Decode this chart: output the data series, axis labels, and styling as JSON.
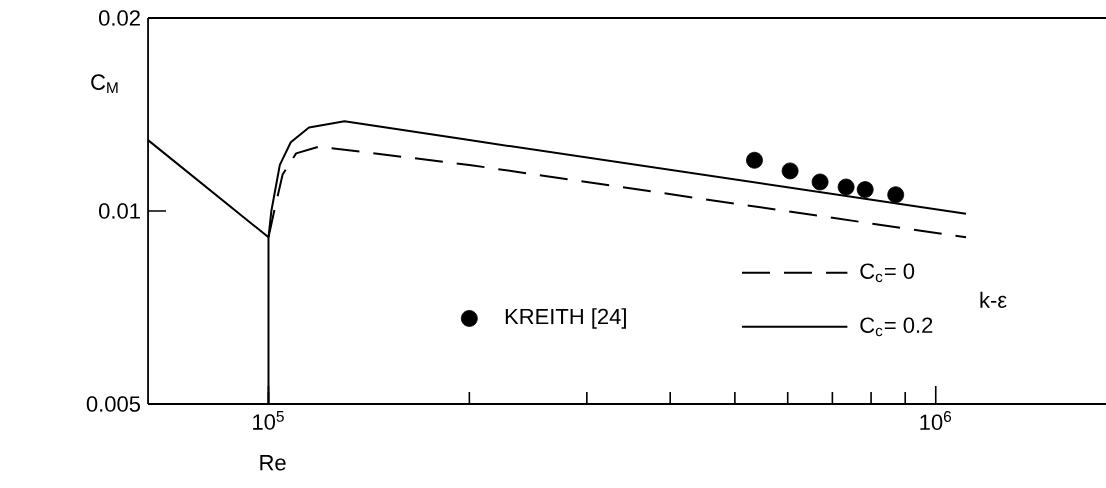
{
  "chart_data": {
    "type": "line",
    "xlabel": "Re",
    "ylabel": "C$_{M}$",
    "legend_title": "k-ε",
    "legend": "bottom right",
    "log": "xy",
    "grid": false,
    "xlim": [
      66000,
      1800000
    ],
    "ylim": [
      0.005,
      0.02
    ],
    "xticks": [
      {
        "value": 100000,
        "label": "10$^{5}$"
      },
      {
        "value": 1000000,
        "label": "10$^{6}$"
      }
    ],
    "yticks": [
      0.005,
      0.01,
      0.02
    ],
    "series": [
      {
        "name": "C$_{c}$= 0",
        "color": "#000000",
        "line_style": "dashed",
        "marker": "none",
        "x": [
          100000,
          102000,
          105000,
          110000,
          119000,
          200000,
          1110000
        ],
        "values": [
          0.0091,
          0.01,
          0.0114,
          0.0123,
          0.0126,
          0.0118,
          0.0091
        ]
      },
      {
        "name": "C$_{c}$= 0.2",
        "color": "#000000",
        "line_style": "solid",
        "marker": "none",
        "x": [
          66000,
          100000,
          100000,
          100000,
          101000,
          104000,
          108000,
          115000,
          130000,
          200000,
          1110000
        ],
        "values": [
          0.0129,
          0.0091,
          0.005,
          0.0091,
          0.01,
          0.0118,
          0.0128,
          0.0135,
          0.0138,
          0.0129,
          0.0099
        ]
      },
      {
        "name": "KREITH [24]",
        "type": "scatter",
        "color": "#000000",
        "marker": "circle",
        "x": [
          535000,
          605000,
          671000,
          734000,
          784000,
          871000
        ],
        "values": [
          0.012,
          0.01155,
          0.0111,
          0.0109,
          0.0108,
          0.0106
        ]
      }
    ]
  }
}
